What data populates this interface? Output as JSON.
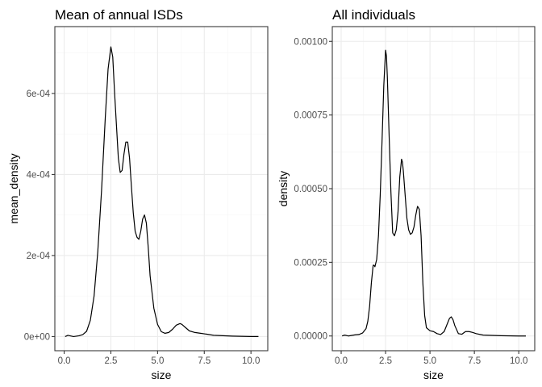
{
  "chart_data": [
    {
      "type": "line",
      "title": "Mean of annual ISDs",
      "xlabel": "size",
      "ylabel": "mean_density",
      "xlim": [
        -0.5,
        10.9
      ],
      "ylim": [
        -3.5e-05,
        0.000765
      ],
      "x_ticks": [
        0,
        2.5,
        5,
        7.5,
        10
      ],
      "x_tick_labels": [
        "0.0",
        "2.5",
        "5.0",
        "7.5",
        "10.0"
      ],
      "y_ticks": [
        0,
        0.0002,
        0.0004,
        0.0006
      ],
      "y_tick_labels": [
        "0e+00",
        "2e-04",
        "4e-04",
        "6e-04"
      ],
      "grid": true,
      "series": [
        {
          "color": "#000000",
          "x": [
            0.05,
            0.2,
            0.5,
            0.8,
            1.0,
            1.2,
            1.4,
            1.6,
            1.8,
            2.0,
            2.2,
            2.35,
            2.5,
            2.6,
            2.7,
            2.8,
            2.9,
            3.0,
            3.1,
            3.2,
            3.3,
            3.4,
            3.5,
            3.6,
            3.7,
            3.8,
            3.9,
            4.0,
            4.1,
            4.2,
            4.3,
            4.4,
            4.5,
            4.6,
            4.8,
            5.0,
            5.2,
            5.4,
            5.6,
            5.8,
            6.0,
            6.2,
            6.3,
            6.5,
            6.7,
            7.0,
            7.3,
            7.6,
            8.0,
            8.5,
            9.0,
            10.0,
            10.4
          ],
          "y": [
            0.0,
            3e-06,
            0.0,
            2e-06,
            5e-06,
            1.3e-05,
            4e-05,
            0.0001,
            0.00021,
            0.00036,
            0.00054,
            0.00066,
            0.000715,
            0.00069,
            0.0006,
            0.00052,
            0.00044,
            0.000405,
            0.00041,
            0.00045,
            0.00048,
            0.00048,
            0.00044,
            0.00037,
            0.000305,
            0.00026,
            0.000245,
            0.00024,
            0.00026,
            0.00029,
            0.0003,
            0.00028,
            0.00022,
            0.00015,
            7e-05,
            3e-05,
            1.2e-05,
            8e-06,
            1e-05,
            1.8e-05,
            2.8e-05,
            3.2e-05,
            3e-05,
            2.2e-05,
            1.4e-05,
            1e-05,
            8e-06,
            6e-06,
            3e-06,
            2e-06,
            1e-06,
            0.0,
            0.0
          ]
        }
      ]
    },
    {
      "type": "line",
      "title": "All individuals",
      "xlabel": "size",
      "ylabel": "density",
      "xlim": [
        -0.5,
        10.9
      ],
      "ylim": [
        -5e-05,
        0.00105
      ],
      "x_ticks": [
        0,
        2.5,
        5,
        7.5,
        10
      ],
      "x_tick_labels": [
        "0.0",
        "2.5",
        "5.0",
        "7.5",
        "10.0"
      ],
      "y_ticks": [
        0,
        0.00025,
        0.0005,
        0.00075,
        0.001
      ],
      "y_tick_labels": [
        "0.00000",
        "0.00025",
        "0.00050",
        "0.00075",
        "0.00100"
      ],
      "grid": true,
      "series": [
        {
          "color": "#000000",
          "x": [
            0.05,
            0.2,
            0.4,
            0.6,
            0.8,
            1.0,
            1.2,
            1.4,
            1.5,
            1.6,
            1.7,
            1.8,
            1.85,
            1.9,
            2.0,
            2.1,
            2.2,
            2.3,
            2.4,
            2.5,
            2.55,
            2.6,
            2.7,
            2.8,
            2.9,
            3.0,
            3.1,
            3.2,
            3.3,
            3.4,
            3.45,
            3.5,
            3.6,
            3.7,
            3.8,
            3.9,
            4.0,
            4.1,
            4.2,
            4.3,
            4.4,
            4.5,
            4.6,
            4.7,
            4.8,
            5.0,
            5.2,
            5.4,
            5.6,
            5.8,
            6.0,
            6.1,
            6.2,
            6.3,
            6.4,
            6.6,
            6.8,
            7.0,
            7.2,
            7.4,
            7.6,
            8.0,
            8.5,
            9.0,
            10.0,
            10.4
          ],
          "y": [
            0.0,
            3e-06,
            0.0,
            2e-06,
            4e-06,
            5e-06,
            1e-05,
            2.5e-05,
            5e-05,
            0.0001,
            0.00018,
            0.00024,
            0.00024,
            0.000235,
            0.00026,
            0.00034,
            0.00048,
            0.00066,
            0.00085,
            0.00097,
            0.00095,
            0.00088,
            0.00068,
            0.00049,
            0.00035,
            0.00034,
            0.00036,
            0.00042,
            0.00054,
            0.0006,
            0.00059,
            0.00056,
            0.00048,
            0.0004,
            0.00036,
            0.000345,
            0.00035,
            0.00037,
            0.00041,
            0.00044,
            0.00043,
            0.00034,
            0.00018,
            7e-05,
            2.8e-05,
            1.8e-05,
            1.5e-05,
            8e-06,
            5e-06,
            1.5e-05,
            4.5e-05,
            6e-05,
            6.5e-05,
            5.5e-05,
            3.5e-05,
            8e-06,
            6e-06,
            1.5e-05,
            1.5e-05,
            1.2e-05,
            8e-06,
            3e-06,
            2e-06,
            1e-06,
            0.0,
            0.0
          ]
        }
      ]
    }
  ]
}
